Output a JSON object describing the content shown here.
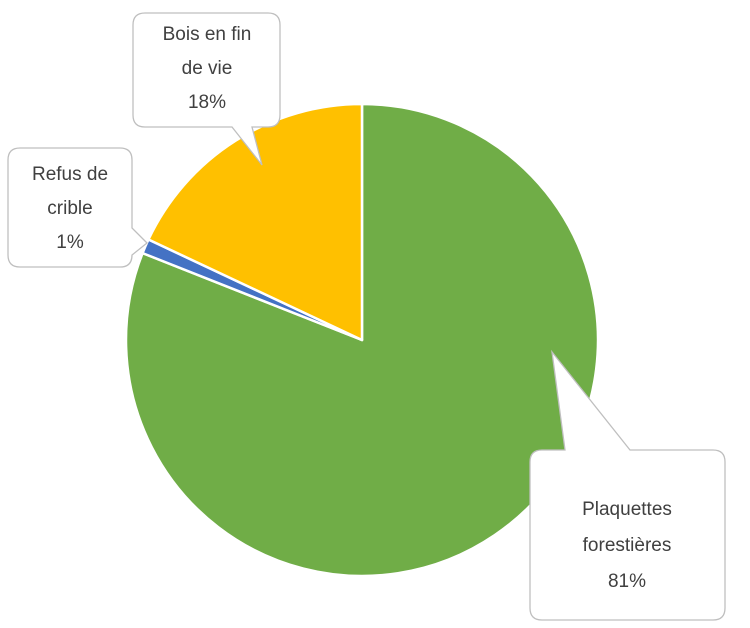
{
  "chart_data": {
    "type": "pie",
    "categories": [
      "Plaquettes forestières",
      "Refus de crible",
      "Bois en fin de vie"
    ],
    "values": [
      81,
      1,
      18
    ],
    "value_labels": [
      "81%",
      "1%",
      "18%"
    ],
    "colors": [
      "#70ad47",
      "#4472c4",
      "#ffc000"
    ]
  }
}
